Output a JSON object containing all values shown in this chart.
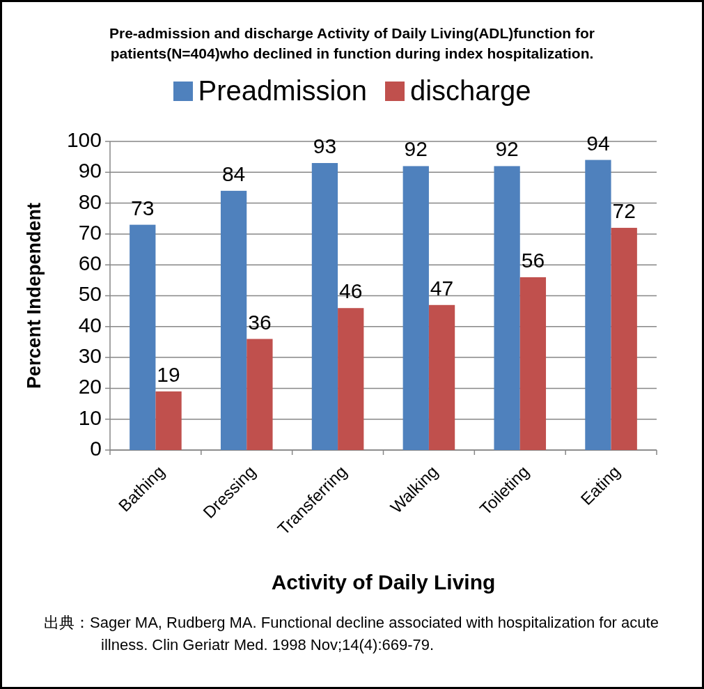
{
  "chart_data": {
    "type": "bar",
    "title": "Pre-admission and discharge Activity of Daily Living(ADL)function for patients(N=404)who declined in function during index hospitalization.",
    "xlabel": "Activity of Daily Living",
    "ylabel": "Percent Independent",
    "categories": [
      "Bathing",
      "Dressing",
      "Transferring",
      "Walking",
      "Toileting",
      "Eating"
    ],
    "series": [
      {
        "name": "Preadmission",
        "color": "#4f81bd",
        "values": [
          73,
          84,
          93,
          92,
          92,
          94
        ]
      },
      {
        "name": "discharge",
        "color": "#c0504d",
        "values": [
          19,
          36,
          46,
          47,
          56,
          72
        ]
      }
    ],
    "ylim": [
      0,
      100
    ],
    "yticks": [
      0,
      10,
      20,
      30,
      40,
      50,
      60,
      70,
      80,
      90,
      100
    ],
    "grid": "y",
    "legend": "top",
    "data_labels": true,
    "annotations": [
      "出典：Sager MA, Rudberg MA. Functional decline associated with hospitalization for acute illness. Clin Geriatr Med. 1998 Nov;14(4):669-79."
    ]
  }
}
